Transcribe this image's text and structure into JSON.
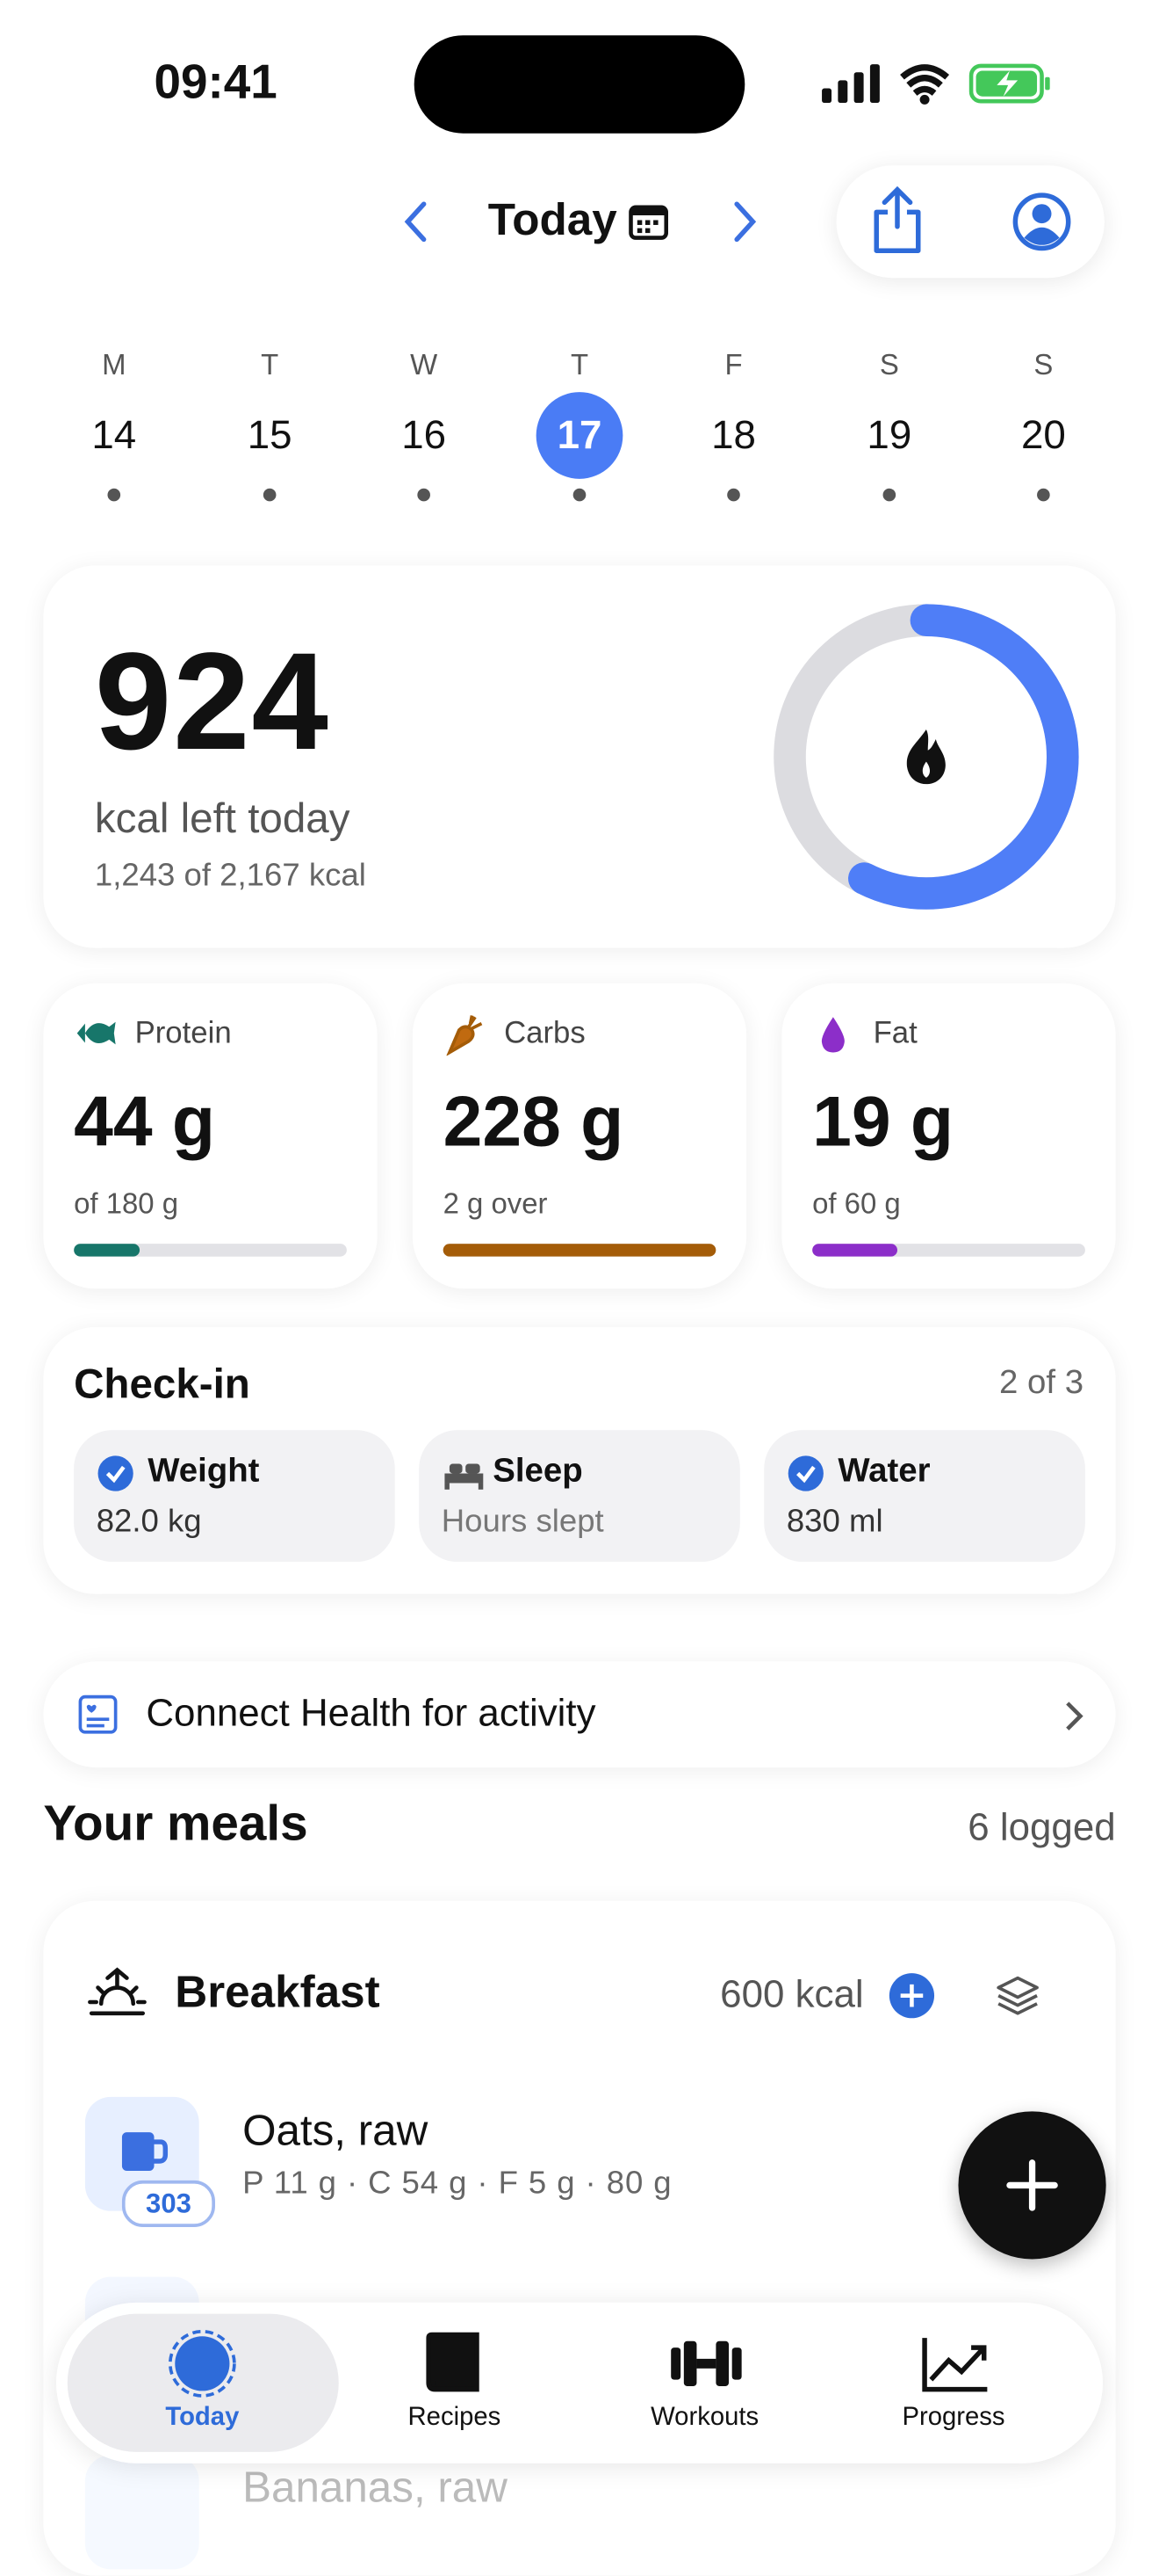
{
  "status_bar": {
    "time": "09:41"
  },
  "header": {
    "title": "Today"
  },
  "week": {
    "days": [
      {
        "letter": "M",
        "date": "14"
      },
      {
        "letter": "T",
        "date": "15"
      },
      {
        "letter": "W",
        "date": "16"
      },
      {
        "letter": "T",
        "date": "17"
      },
      {
        "letter": "F",
        "date": "18"
      },
      {
        "letter": "S",
        "date": "19"
      },
      {
        "letter": "S",
        "date": "20"
      }
    ]
  },
  "summary": {
    "kcal_left": "924",
    "label": "kcal left today",
    "detail": "1,243 of 2,167 kcal"
  },
  "macros": [
    {
      "name": "Protein",
      "amount": "44 g",
      "note": "of 180 g"
    },
    {
      "name": "Carbs",
      "amount": "228 g",
      "note": "2 g over"
    },
    {
      "name": "Fat",
      "amount": "19 g",
      "note": "of 60 g"
    }
  ],
  "checkin": {
    "title": "Check-in",
    "progress": "2 of 3",
    "items": [
      {
        "name": "Weight",
        "value": "82.0 kg"
      },
      {
        "name": "Sleep",
        "value": "Hours slept"
      },
      {
        "name": "Water",
        "value": "830 ml"
      }
    ]
  },
  "health_banner": "Connect Health for activity",
  "meals": {
    "title": "Your meals",
    "count": "6 logged",
    "sections": [
      {
        "name": "Breakfast",
        "kcal": "600 kcal",
        "items": [
          {
            "name": "Oats, raw",
            "macros": "P 11 g · C 54 g · F 5 g · 80 g",
            "badge": "303"
          },
          {
            "name": "Bananas, raw"
          }
        ]
      }
    ]
  },
  "tab_bar": {
    "tabs": [
      "Today",
      "Recipes",
      "Workouts",
      "Progress"
    ]
  }
}
